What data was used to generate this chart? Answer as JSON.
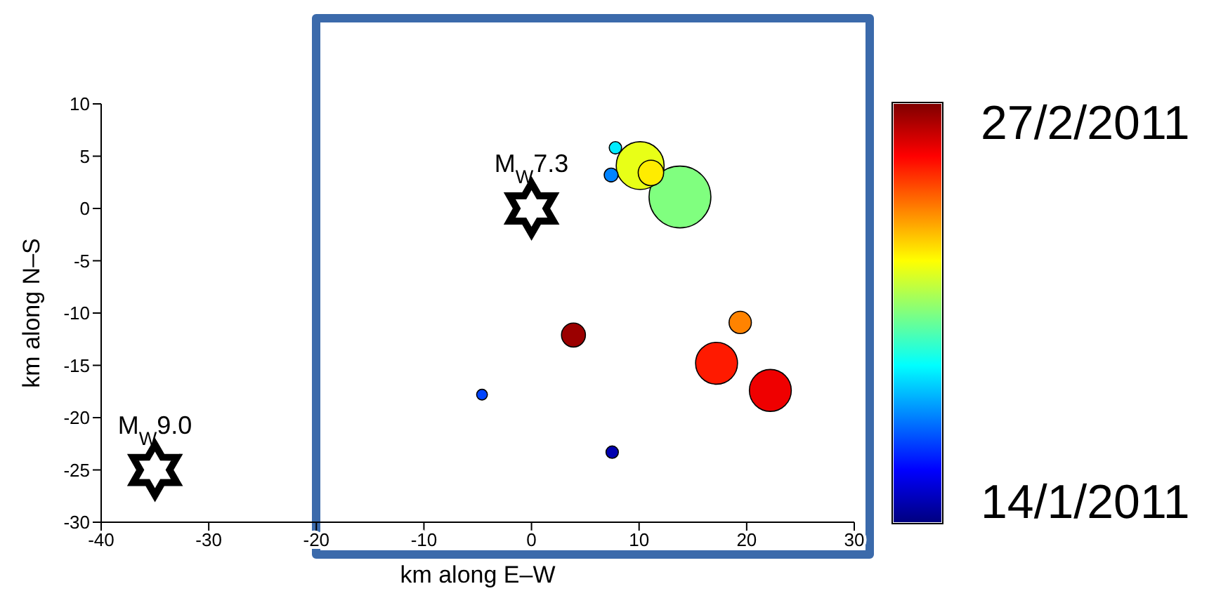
{
  "chart_data": {
    "type": "bubble",
    "xlabel": "km along E–W",
    "ylabel": "km along N–S",
    "xlim": [
      -40,
      30
    ],
    "xticks": [
      -40,
      -30,
      -20,
      -10,
      0,
      10,
      20,
      30
    ],
    "ylim": [
      -30,
      10
    ],
    "yticks": [
      -30,
      -25,
      -20,
      -15,
      -10,
      -5,
      0,
      5,
      10
    ],
    "x": [
      13.8,
      10.1,
      11.1,
      7.8,
      7.4,
      3.9,
      19.4,
      17.2,
      22.2,
      -4.6,
      7.5
    ],
    "values": [
      1.1,
      4.1,
      3.4,
      5.8,
      3.2,
      -12.1,
      -10.9,
      -14.8,
      -17.4,
      -17.8,
      -23.3
    ],
    "sizes": [
      1,
      0.6,
      0.17,
      0.04,
      0.05,
      0.15,
      0.13,
      0.46,
      0.46,
      0.03,
      0.04
    ],
    "cvalues": [
      36,
      41,
      43,
      29,
      24,
      59,
      48,
      53,
      55,
      21,
      14
    ],
    "clim": [
      11.7,
      60.3
    ],
    "cticks": [
      {
        "value": 14,
        "label": "14/1/2011"
      },
      {
        "value": 58,
        "label": "27/2/2011"
      }
    ],
    "grid": false,
    "annotations": [
      {
        "text": "M$_{W}$7.3",
        "x": 0,
        "y": 0
      },
      {
        "text": "M$_{W}$9.0",
        "x": -35,
        "y": -25
      }
    ]
  }
}
